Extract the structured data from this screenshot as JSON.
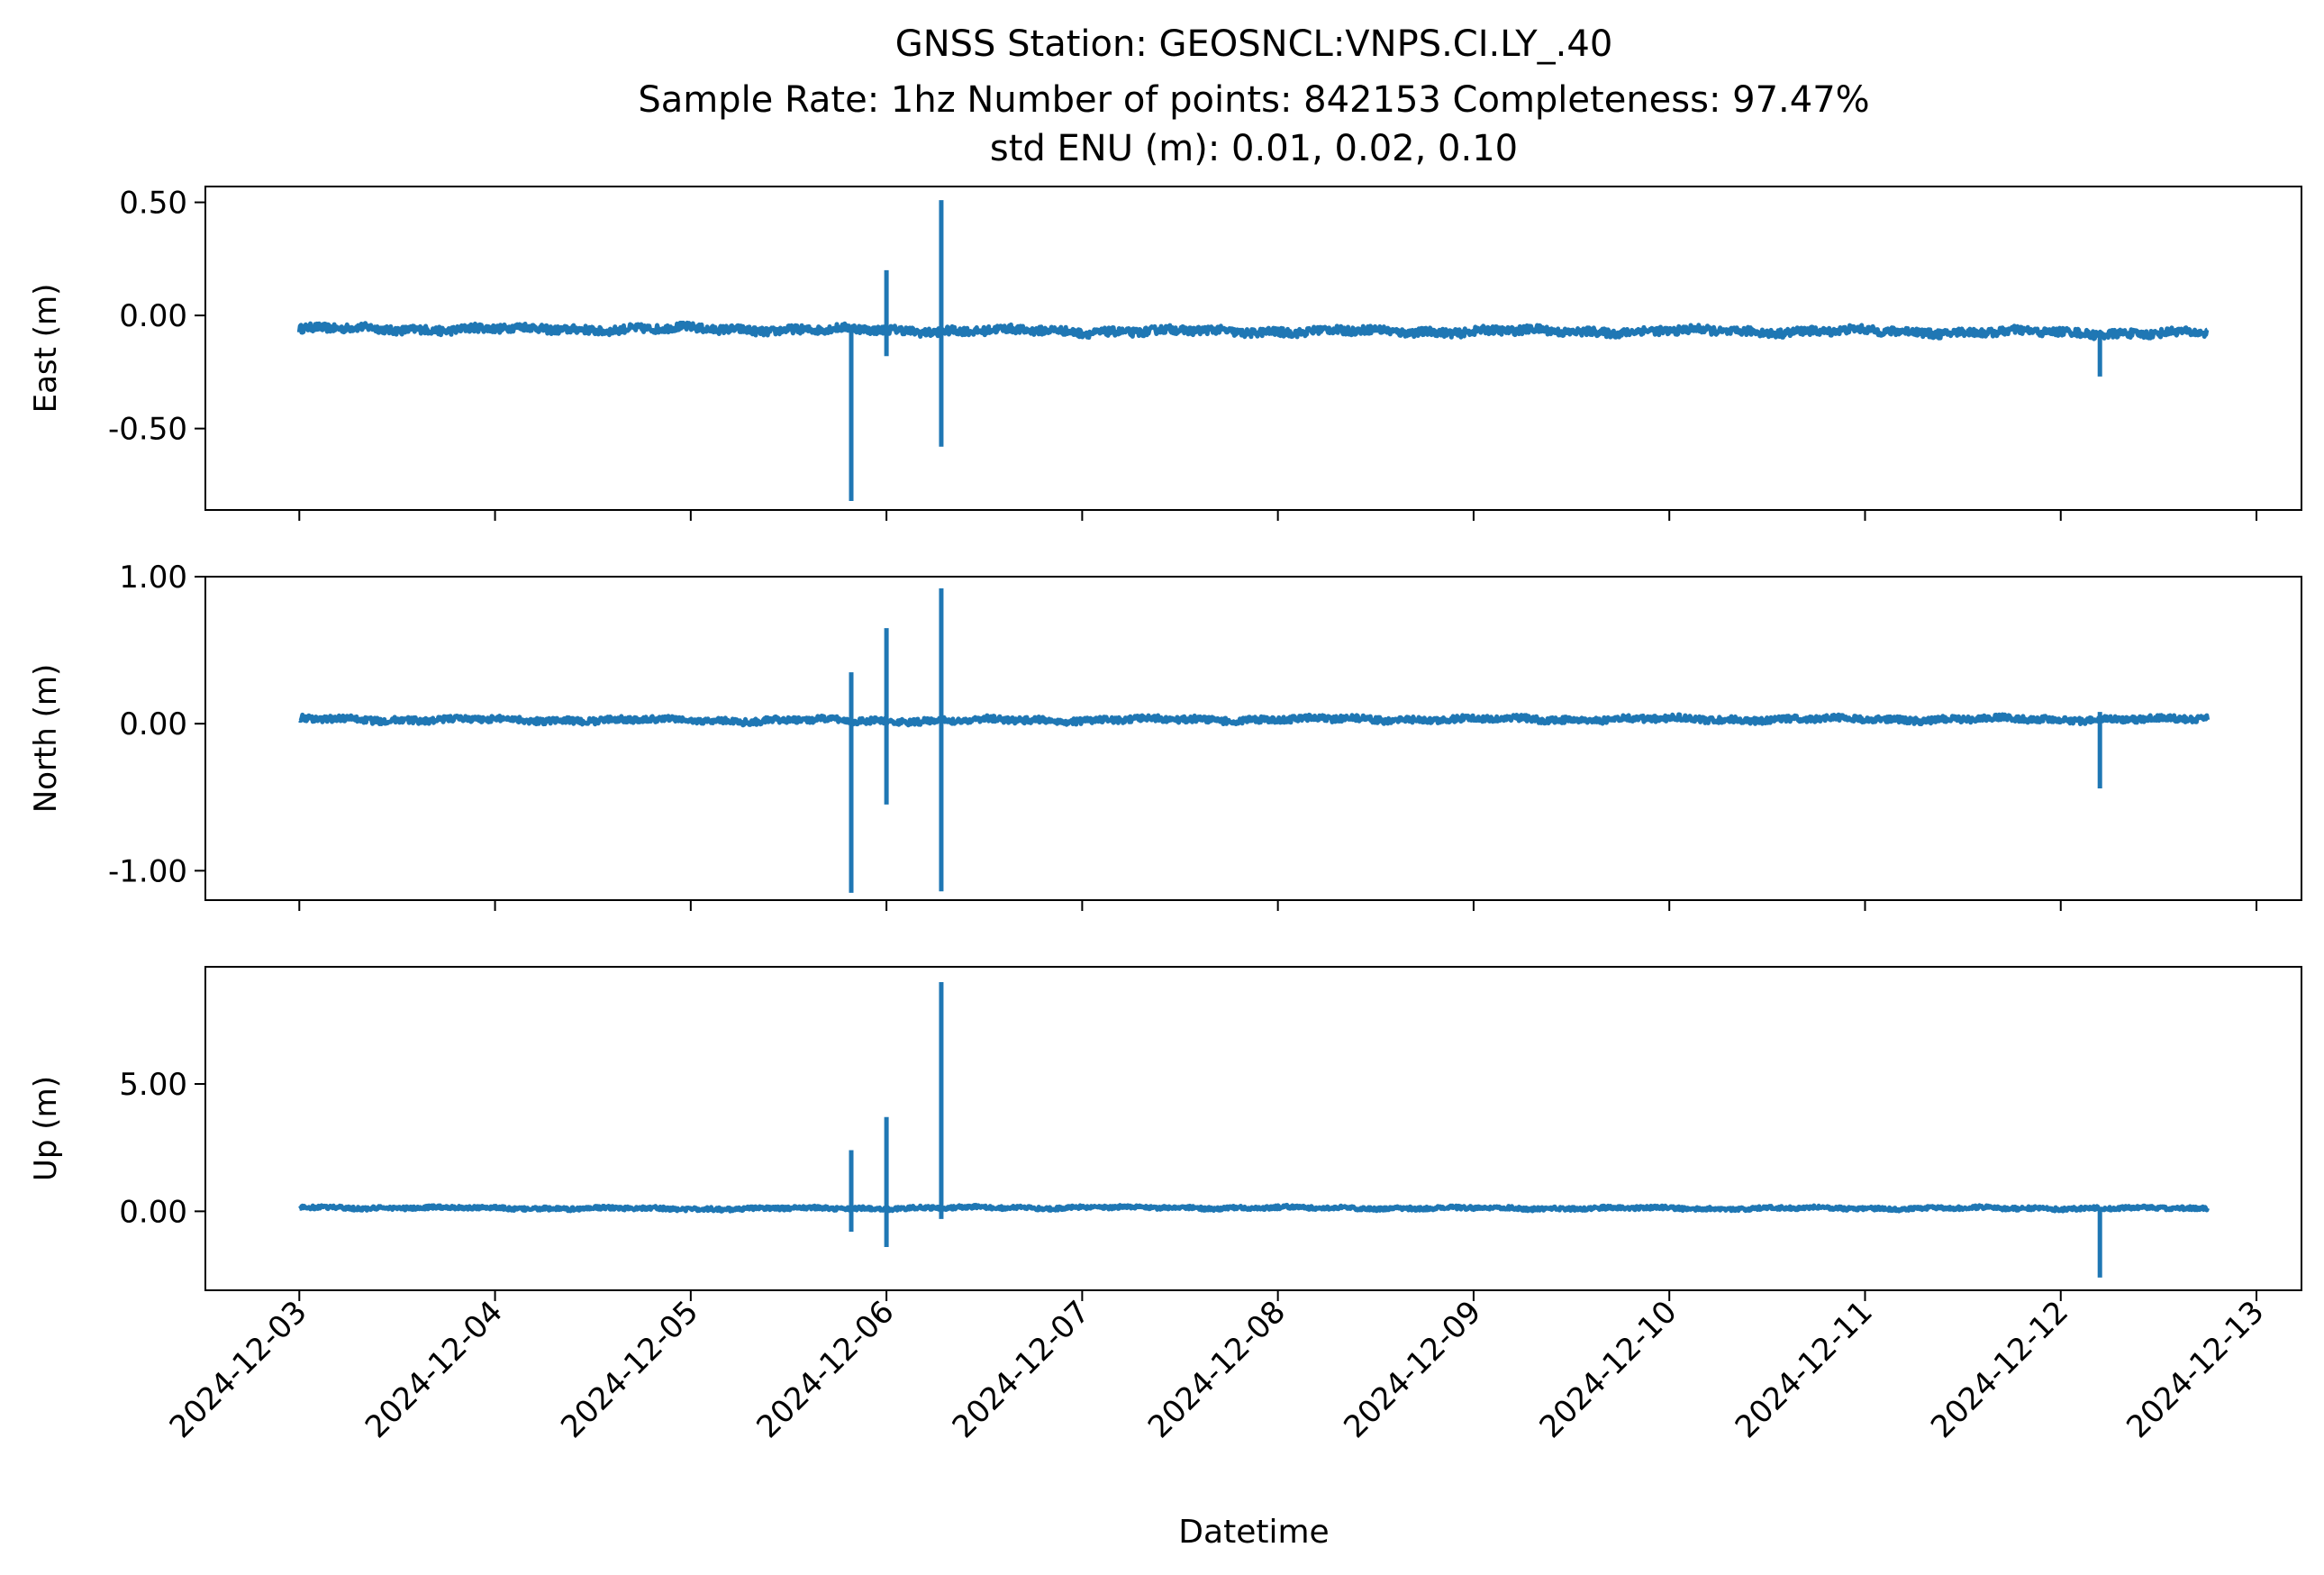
{
  "chart_data": {
    "type": "line",
    "title_lines": [
      "GNSS Station: GEOSNCL:VNPS.CI.LY_.40",
      "Sample Rate: 1hz   Number of points: 842153    Completeness:  97.47%",
      "std ENU (m):  0.01, 0.02, 0.10"
    ],
    "xlabel": "Datetime",
    "x_ticks": [
      "2024-12-03",
      "2024-12-04",
      "2024-12-05",
      "2024-12-06",
      "2024-12-07",
      "2024-12-08",
      "2024-12-09",
      "2024-12-10",
      "2024-12-11",
      "2024-12-12",
      "2024-12-13"
    ],
    "x_range_days": [
      -0.48,
      10.23
    ],
    "data_span_days": [
      0.0,
      9.75
    ],
    "color": "#1f77b4",
    "panels": [
      {
        "ylabel": "East (m)",
        "ylim": [
          -0.86,
          0.57
        ],
        "yticks": [
          0.5,
          0.0,
          -0.5
        ],
        "ytick_labels": [
          "0.50",
          "0.00",
          "-0.50"
        ],
        "baseline": [
          [
            0,
            -0.06
          ],
          [
            2,
            -0.06
          ],
          [
            4,
            -0.07
          ],
          [
            6,
            -0.07
          ],
          [
            8,
            -0.07
          ],
          [
            9.75,
            -0.08
          ]
        ],
        "noise_amplitude": 0.03,
        "spikes": [
          {
            "t": 2.82,
            "lo": -0.82,
            "hi": -0.05
          },
          {
            "t": 3.0,
            "lo": -0.18,
            "hi": 0.2
          },
          {
            "t": 3.28,
            "lo": -0.58,
            "hi": 0.51
          },
          {
            "t": 9.2,
            "lo": -0.27,
            "hi": -0.07
          }
        ]
      },
      {
        "ylabel": "North (m)",
        "ylim": [
          -1.2,
          1.0
        ],
        "yticks": [
          1.0,
          0.0,
          -1.0
        ],
        "ytick_labels": [
          "1.00",
          "0.00",
          "-1.00"
        ],
        "baseline": [
          [
            0,
            0.03
          ],
          [
            3,
            0.02
          ],
          [
            5,
            0.03
          ],
          [
            7,
            0.03
          ],
          [
            9.75,
            0.03
          ]
        ],
        "noise_amplitude": 0.035,
        "spikes": [
          {
            "t": 2.82,
            "lo": -1.15,
            "hi": 0.35
          },
          {
            "t": 3.0,
            "lo": -0.55,
            "hi": 0.65
          },
          {
            "t": 3.28,
            "lo": -1.14,
            "hi": 0.92
          },
          {
            "t": 9.2,
            "lo": -0.44,
            "hi": 0.08
          }
        ]
      },
      {
        "ylabel": "Up (m)",
        "ylim": [
          -3.1,
          9.6
        ],
        "yticks": [
          5.0,
          0.0
        ],
        "ytick_labels": [
          "5.00",
          "0.00"
        ],
        "baseline": [
          [
            0,
            0.15
          ],
          [
            2,
            0.1
          ],
          [
            4,
            0.15
          ],
          [
            6,
            0.12
          ],
          [
            8,
            0.12
          ],
          [
            9.75,
            0.12
          ]
        ],
        "noise_amplitude": 0.12,
        "spikes": [
          {
            "t": 2.82,
            "lo": -0.8,
            "hi": 2.4
          },
          {
            "t": 3.0,
            "lo": -1.4,
            "hi": 3.7
          },
          {
            "t": 3.28,
            "lo": -0.3,
            "hi": 9.0
          },
          {
            "t": 9.2,
            "lo": -2.6,
            "hi": 0.1
          }
        ]
      }
    ]
  }
}
